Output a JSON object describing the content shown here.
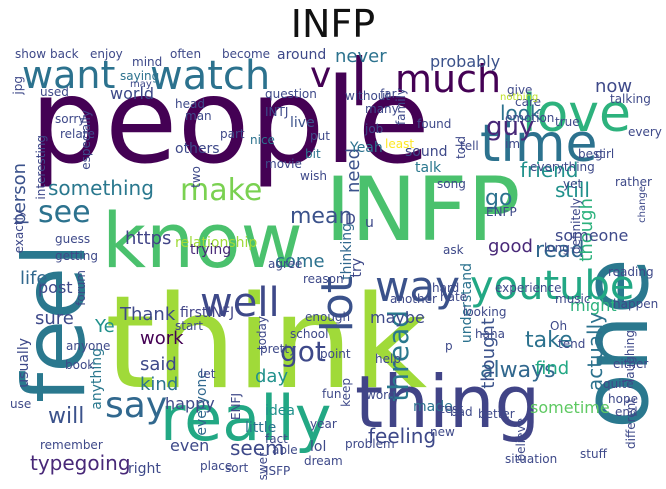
{
  "title": "INFP",
  "chart_data": {
    "type": "wordcloud",
    "title": "INFP",
    "words": [
      {
        "text": "people",
        "color": "#440154"
      },
      {
        "text": "think",
        "color": "#a0da39"
      },
      {
        "text": "INFP",
        "color": "#4ac16d"
      },
      {
        "text": "know",
        "color": "#4ac16d"
      },
      {
        "text": "feel",
        "color": "#2a788e"
      },
      {
        "text": "one",
        "color": "#2a788e"
      },
      {
        "text": "thing",
        "color": "#414487"
      },
      {
        "text": "really",
        "color": "#22a884"
      },
      {
        "text": "love",
        "color": "#2db27d"
      },
      {
        "text": "time",
        "color": "#2c728e"
      },
      {
        "text": "want",
        "color": "#2c728e"
      },
      {
        "text": "watch",
        "color": "#2c728e"
      },
      {
        "text": "much",
        "color": "#440154"
      },
      {
        "text": "youtube",
        "color": "#22a884"
      },
      {
        "text": "way",
        "color": "#3b528b"
      },
      {
        "text": "well",
        "color": "#3e4989"
      },
      {
        "text": "lot",
        "color": "#3b528b"
      },
      {
        "text": "make",
        "color": "#7ad151"
      },
      {
        "text": "say",
        "color": "#31688e"
      },
      {
        "text": "see",
        "color": "#2c728e"
      },
      {
        "text": "v",
        "color": "#440154"
      },
      {
        "text": "l",
        "color": "#440154"
      },
      {
        "text": "thread",
        "color": "#2a788e"
      },
      {
        "text": "something",
        "color": "#2a788e"
      },
      {
        "text": "guy",
        "color": "#482878"
      },
      {
        "text": "friend",
        "color": "#21918c"
      },
      {
        "text": "still",
        "color": "#21918c"
      },
      {
        "text": "look",
        "color": "#2c728e"
      },
      {
        "text": "always",
        "color": "#31688e"
      },
      {
        "text": "got",
        "color": "#3e4989"
      },
      {
        "text": "feeling",
        "color": "#3e4989"
      },
      {
        "text": "read",
        "color": "#31688e"
      },
      {
        "text": "go",
        "color": "#2c728e"
      },
      {
        "text": "mean",
        "color": "#3b528b"
      },
      {
        "text": "need",
        "color": "#3b528b"
      },
      {
        "text": "though",
        "color": "#2db27d"
      },
      {
        "text": "actually",
        "color": "#2c728e"
      },
      {
        "text": "typegoing",
        "color": "#482878"
      },
      {
        "text": "seem",
        "color": "#3e4989"
      },
      {
        "text": "will",
        "color": "#3b528b"
      },
      {
        "text": "sometime",
        "color": "#5ec962"
      },
      {
        "text": "person",
        "color": "#3b528b"
      },
      {
        "text": "life",
        "color": "#31688e"
      },
      {
        "text": "https",
        "color": "#414487"
      },
      {
        "text": "good",
        "color": "#482878"
      },
      {
        "text": "someone",
        "color": "#3e4989"
      },
      {
        "text": "take",
        "color": "#2c728e"
      },
      {
        "text": "find",
        "color": "#22a884"
      },
      {
        "text": "come",
        "color": "#2c728e"
      },
      {
        "text": "probably",
        "color": "#3b528b"
      },
      {
        "text": "never",
        "color": "#2c728e"
      },
      {
        "text": "now",
        "color": "#3e4989"
      },
      {
        "text": "Thank",
        "color": "#3e4989"
      },
      {
        "text": "firstINFJ",
        "color": "#414487"
      },
      {
        "text": "work",
        "color": "#440154"
      },
      {
        "text": "said",
        "color": "#3e4989"
      },
      {
        "text": "kind",
        "color": "#2c728e"
      },
      {
        "text": "sure",
        "color": "#3e4989"
      },
      {
        "text": "maybe",
        "color": "#3e4989"
      },
      {
        "text": "Ye",
        "color": "#21918c"
      },
      {
        "text": "post",
        "color": "#3e4989"
      },
      {
        "text": "day",
        "color": "#21918c"
      },
      {
        "text": "happy",
        "color": "#3e4989"
      },
      {
        "text": "thought",
        "color": "#3b528b"
      },
      {
        "text": "even",
        "color": "#3e4989"
      },
      {
        "text": "right",
        "color": "#3e4989"
      },
      {
        "text": "lol",
        "color": "#3e4989"
      },
      {
        "text": "might",
        "color": "#2db27d"
      },
      {
        "text": "anything",
        "color": "#2a788e"
      },
      {
        "text": "usually",
        "color": "#3e4989"
      },
      {
        "text": "world",
        "color": "#3e4989"
      },
      {
        "text": "thinking",
        "color": "#31688e"
      },
      {
        "text": "understand",
        "color": "#2c728e"
      },
      {
        "text": "try",
        "color": "#3e4989"
      },
      {
        "text": "relationship",
        "color": "#a0da39"
      },
      {
        "text": "trying",
        "color": "#482878"
      },
      {
        "text": "Yeah",
        "color": "#2c728e"
      },
      {
        "text": "sound",
        "color": "#3e4989"
      },
      {
        "text": "talk",
        "color": "#2a788e"
      },
      {
        "text": "others",
        "color": "#3e4989"
      },
      {
        "text": "around",
        "color": "#3e4989"
      },
      {
        "text": "live",
        "color": "#3b528b"
      },
      {
        "text": "everyone",
        "color": "#31688e"
      },
      {
        "text": "idea",
        "color": "#21918c"
      },
      {
        "text": "little",
        "color": "#2c728e"
      },
      {
        "text": "pretty",
        "color": "#3e4989"
      },
      {
        "text": "made",
        "color": "#2c728e"
      },
      {
        "text": "point",
        "color": "#3e4989"
      },
      {
        "text": "guess",
        "color": "#3e4989"
      },
      {
        "text": "question",
        "color": "#3e4989"
      },
      {
        "text": "mind",
        "color": "#3e4989"
      },
      {
        "text": "saying",
        "color": "#2c728e"
      },
      {
        "text": "used",
        "color": "#3e4989"
      },
      {
        "text": "often",
        "color": "#3e4989"
      },
      {
        "text": "become",
        "color": "#3e4989"
      },
      {
        "text": "show",
        "color": "#3e4989"
      },
      {
        "text": "back",
        "color": "#3e4989"
      },
      {
        "text": "enjoy",
        "color": "#3e4989"
      },
      {
        "text": "INTJ",
        "color": "#3e4989"
      },
      {
        "text": "nice",
        "color": "#2c728e"
      },
      {
        "text": "put",
        "color": "#3e4989"
      },
      {
        "text": "bit",
        "color": "#2c728e"
      },
      {
        "text": "many",
        "color": "#3e4989"
      },
      {
        "text": "job",
        "color": "#3e4989"
      },
      {
        "text": "wish",
        "color": "#3e4989"
      },
      {
        "text": "movie",
        "color": "#3e4989"
      },
      {
        "text": "song",
        "color": "#3e4989"
      },
      {
        "text": "tell",
        "color": "#3e4989"
      },
      {
        "text": "found",
        "color": "#3e4989"
      },
      {
        "text": "least",
        "color": "#fde725"
      },
      {
        "text": "true",
        "color": "#3e4989"
      },
      {
        "text": "emotion",
        "color": "#3e4989"
      },
      {
        "text": "give",
        "color": "#3e4989"
      },
      {
        "text": "care",
        "color": "#3e4989"
      },
      {
        "text": "talking",
        "color": "#3e4989"
      },
      {
        "text": "nothing",
        "color": "#bddf26"
      },
      {
        "text": "every",
        "color": "#3e4989"
      },
      {
        "text": "everything",
        "color": "#3e4989"
      },
      {
        "text": "best",
        "color": "#3e4989"
      },
      {
        "text": "girl",
        "color": "#3e4989"
      },
      {
        "text": "yet",
        "color": "#3e4989"
      },
      {
        "text": "ENFP",
        "color": "#3e4989"
      },
      {
        "text": "rather",
        "color": "#3e4989"
      },
      {
        "text": "change",
        "color": "#3e4989"
      },
      {
        "text": "definitely",
        "color": "#3e4989"
      },
      {
        "text": "ask",
        "color": "#3e4989"
      },
      {
        "text": "hate",
        "color": "#3e4989"
      },
      {
        "text": "another",
        "color": "#3e4989"
      },
      {
        "text": "agree",
        "color": "#3e4989"
      },
      {
        "text": "reason",
        "color": "#3e4989"
      },
      {
        "text": "school",
        "color": "#3e4989"
      },
      {
        "text": "enough",
        "color": "#3e4989"
      },
      {
        "text": "experience",
        "color": "#3e4989"
      },
      {
        "text": "music",
        "color": "#3e4989"
      },
      {
        "text": "reading",
        "color": "#3e4989"
      },
      {
        "text": "long",
        "color": "#3e4989"
      },
      {
        "text": "happen",
        "color": "#3e4989"
      },
      {
        "text": "hard",
        "color": "#3e4989"
      },
      {
        "text": "looking",
        "color": "#3e4989"
      },
      {
        "text": "haha",
        "color": "#3e4989"
      },
      {
        "text": "Oh",
        "color": "#3e4989"
      },
      {
        "text": "tend",
        "color": "#3e4989"
      },
      {
        "text": "laughing",
        "color": "#3e4989"
      },
      {
        "text": "either",
        "color": "#3e4989"
      },
      {
        "text": "quite",
        "color": "#3e4989"
      },
      {
        "text": "test",
        "color": "#3e4989"
      },
      {
        "text": "new",
        "color": "#3e4989"
      },
      {
        "text": "bad",
        "color": "#3e4989"
      },
      {
        "text": "better",
        "color": "#3e4989"
      },
      {
        "text": "believe",
        "color": "#3e4989"
      },
      {
        "text": "hope",
        "color": "#3e4989"
      },
      {
        "text": "different",
        "color": "#3e4989"
      },
      {
        "text": "end",
        "color": "#3e4989"
      },
      {
        "text": "situation",
        "color": "#3e4989"
      },
      {
        "text": "stuff",
        "color": "#3e4989"
      },
      {
        "text": "ISFP",
        "color": "#3e4989"
      },
      {
        "text": "dream",
        "color": "#3e4989"
      },
      {
        "text": "answer",
        "color": "#3e4989"
      },
      {
        "text": "sort",
        "color": "#3e4989"
      },
      {
        "text": "able",
        "color": "#3e4989"
      },
      {
        "text": "year",
        "color": "#3e4989"
      },
      {
        "text": "problem",
        "color": "#3e4989"
      },
      {
        "text": "fact",
        "color": "#3e4989"
      },
      {
        "text": "fun",
        "color": "#3e4989"
      },
      {
        "text": "word",
        "color": "#3e4989"
      },
      {
        "text": "help",
        "color": "#3e4989"
      },
      {
        "text": "keep",
        "color": "#3e4989"
      },
      {
        "text": "place",
        "color": "#3e4989"
      },
      {
        "text": "start",
        "color": "#3e4989"
      },
      {
        "text": "book",
        "color": "#3e4989"
      },
      {
        "text": "anyone",
        "color": "#3e4989"
      },
      {
        "text": "remember",
        "color": "#3e4989"
      },
      {
        "text": "use",
        "color": "#3e4989"
      },
      {
        "text": "ENFJ",
        "color": "#3e4989"
      },
      {
        "text": "let",
        "color": "#3e4989"
      },
      {
        "text": "today",
        "color": "#3e4989"
      },
      {
        "text": "forum",
        "color": "#3e4989"
      },
      {
        "text": "getting",
        "color": "#3e4989"
      },
      {
        "text": "exactly",
        "color": "#3e4989"
      },
      {
        "text": "interesting",
        "color": "#3e4989"
      },
      {
        "text": "relate",
        "color": "#3e4989"
      },
      {
        "text": "especially",
        "color": "#3e4989"
      },
      {
        "text": "sorry",
        "color": "#3e4989"
      },
      {
        "text": "jpg",
        "color": "#3e4989"
      },
      {
        "text": "may",
        "color": "#3e4989"
      },
      {
        "text": "head",
        "color": "#3e4989"
      },
      {
        "text": "man",
        "color": "#3e4989"
      },
      {
        "text": "without",
        "color": "#3e4989"
      },
      {
        "text": "far",
        "color": "#3e4989"
      },
      {
        "text": "family",
        "color": "#3e4989"
      },
      {
        "text": "im",
        "color": "#3e4989"
      },
      {
        "text": "two",
        "color": "#3e4989"
      },
      {
        "text": "part",
        "color": "#3e4989"
      },
      {
        "text": "told",
        "color": "#3e4989"
      },
      {
        "text": "D",
        "color": "#3e4989"
      },
      {
        "text": "u",
        "color": "#3e4989"
      },
      {
        "text": "p",
        "color": "#3e4989"
      }
    ]
  }
}
